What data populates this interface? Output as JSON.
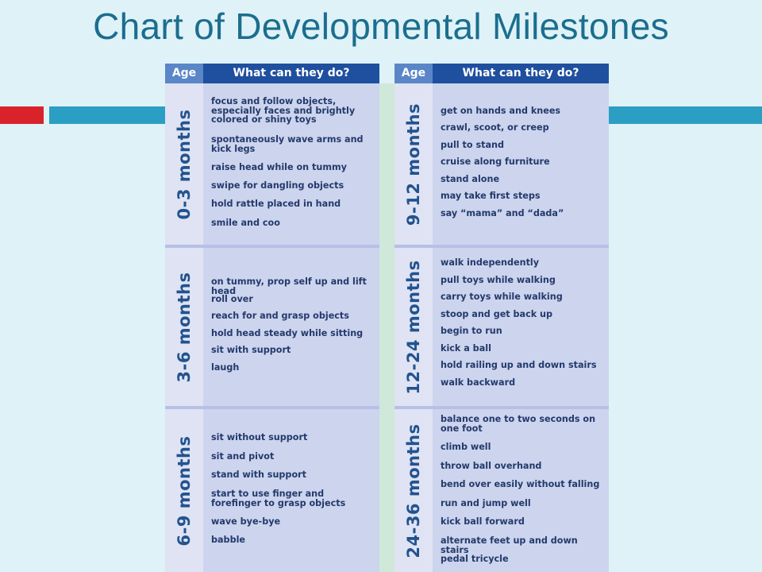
{
  "title": "Chart of Developmental Milestones",
  "colors": {
    "background": "#dff2f8",
    "title": "#1b6e8e",
    "accent_red": "#d9222a",
    "accent_blue": "#2b9ec4",
    "header_dark": "#1f4f9f",
    "header_age": "#5a86c8",
    "panel": "#cdd4ee"
  },
  "header": {
    "age": "Age",
    "what": "What can they do?"
  },
  "left": {
    "sections": [
      {
        "age": "0-3 months",
        "items": [
          "focus and follow objects, especially faces and brightly colored or shiny toys",
          "spontaneously wave arms and kick legs",
          "raise head while on tummy",
          "swipe for dangling objects",
          "hold rattle placed in hand",
          "smile and coo"
        ]
      },
      {
        "age": "3-6 months",
        "items": [
          "on tummy, prop self up and lift head",
          "roll over",
          "reach for and grasp objects",
          "hold head steady while sitting",
          "sit with support",
          "laugh"
        ]
      },
      {
        "age": "6-9 months",
        "items": [
          "sit without support",
          "sit and pivot",
          "stand with support",
          "start to use finger and forefinger to grasp objects",
          "wave bye-bye",
          "babble"
        ]
      }
    ]
  },
  "right": {
    "sections": [
      {
        "age": "9-12 months",
        "items": [
          "get on hands and knees",
          "crawl, scoot, or creep",
          "pull to stand",
          "cruise along furniture",
          "stand alone",
          "may take first steps",
          "say “mama” and “dada”"
        ]
      },
      {
        "age": "12-24 months",
        "items": [
          "walk independently",
          "pull toys while walking",
          "carry toys while walking",
          "stoop and get back up",
          "begin to run",
          "kick a ball",
          "hold railing up and down stairs",
          "walk backward"
        ]
      },
      {
        "age": "24-36 months",
        "items": [
          "balance one to two seconds on one foot",
          "climb well",
          "throw ball overhand",
          "bend over easily without falling",
          "run and jump well",
          "kick ball forward",
          "alternate feet up and down stairs",
          "pedal tricycle"
        ]
      }
    ]
  }
}
